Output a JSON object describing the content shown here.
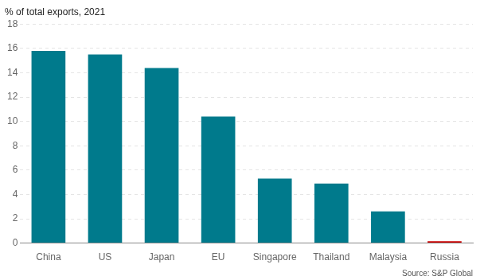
{
  "chart_data": {
    "type": "bar",
    "ylabel": "% of total exports, 2021",
    "annotations": [
      "Source: S&P Global"
    ],
    "categories": [
      "China",
      "US",
      "Japan",
      "EU",
      "Singapore",
      "Thailand",
      "Malaysia",
      "Russia"
    ],
    "values": [
      15.8,
      15.5,
      14.4,
      10.4,
      5.3,
      4.9,
      2.6,
      0.15
    ],
    "colors": [
      "#007A8C",
      "#007A8C",
      "#007A8C",
      "#007A8C",
      "#007A8C",
      "#007A8C",
      "#007A8C",
      "#cc0000"
    ],
    "ylim": [
      0,
      18
    ],
    "yticks": [
      0,
      2,
      4,
      6,
      8,
      10,
      12,
      14,
      16,
      18
    ],
    "grid": true
  }
}
